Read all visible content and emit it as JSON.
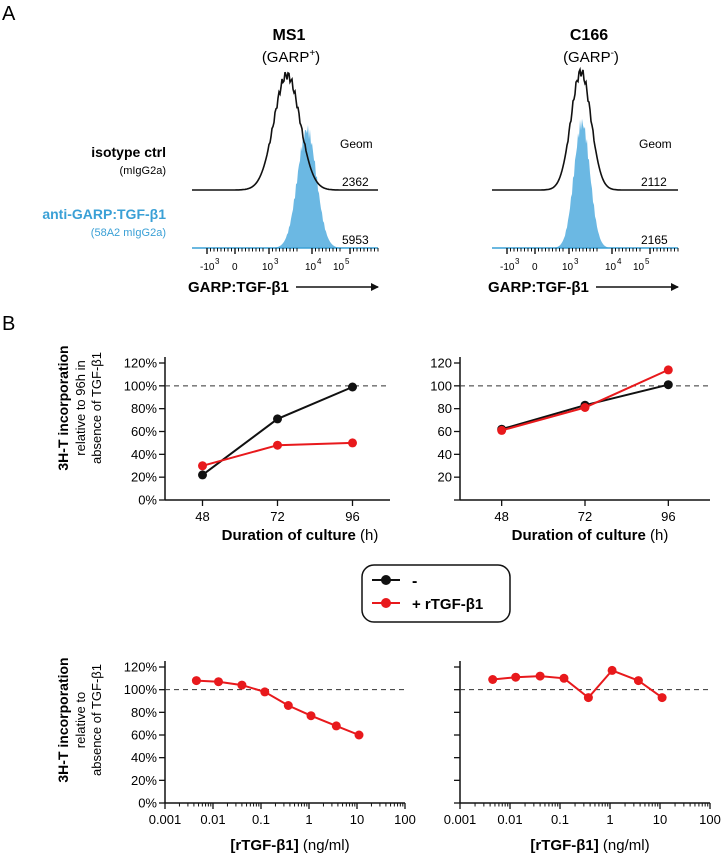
{
  "panel_labels": {
    "a": "A",
    "b": "B"
  },
  "colors": {
    "iso": "#111111",
    "anti": "#3aa0d6",
    "anti_fill": "#6bb8e3",
    "minus": "#111111",
    "plus": "#e8191c"
  },
  "flow": {
    "isotype_label": "isotype ctrl",
    "isotype_sub": "(mIgG2a)",
    "anti_label": "anti-GARP:TGF-β1",
    "anti_sub": "(58A2 mIgG2a)",
    "geom_label": "Geom",
    "axis_label": "GARP:TGF-β1",
    "tick_labels": [
      "-10",
      "3",
      "0",
      "10",
      "3",
      "10",
      "4",
      "10",
      "5"
    ],
    "panels": [
      {
        "title": "MS1",
        "subtitle_base": "(GARP",
        "subtitle_sup": "+",
        "subtitle_end": ")",
        "iso_geom": "2362",
        "anti_geom": "5953"
      },
      {
        "title": "C166",
        "subtitle_base": "(GARP",
        "subtitle_sup": "-",
        "subtitle_end": ")",
        "iso_geom": "2112",
        "anti_geom": "2165"
      }
    ]
  },
  "legend": {
    "minus": "-",
    "plus": "+ rTGF-β1"
  },
  "ylabels": {
    "top": {
      "main": "3H-T incorporation",
      "sub1": "relative to 96h in",
      "sub2": "absence of TGF-β1"
    },
    "bottom": {
      "main": "3H-T incorporation",
      "sub1": "relative to",
      "sub2": "absence of TGF-β1"
    }
  },
  "xlabels": {
    "top": {
      "bold": "Duration of culture",
      "normal": " (h)"
    },
    "bottom": {
      "bold": "[rTGF-β1]",
      "normal": " (ng/ml)"
    }
  },
  "chart_data": [
    {
      "type": "line",
      "id": "time-ms1",
      "x": [
        48,
        72,
        96
      ],
      "xlim": [
        36,
        108
      ],
      "xticks": [
        48,
        72,
        96
      ],
      "ylim": [
        0,
        120
      ],
      "yticks": [
        0,
        20,
        40,
        60,
        80,
        100,
        120
      ],
      "ytick_labels": [
        "0%",
        "20%",
        "40%",
        "60%",
        "80%",
        "100%",
        "120%"
      ],
      "reference_line": 100,
      "series": [
        {
          "name": "-",
          "values": [
            22,
            71,
            99
          ]
        },
        {
          "name": "+ rTGF-β1",
          "values": [
            30,
            48,
            50
          ]
        }
      ]
    },
    {
      "type": "line",
      "id": "time-c166",
      "x": [
        48,
        72,
        96
      ],
      "xlim": [
        36,
        108
      ],
      "xticks": [
        48,
        72,
        96
      ],
      "ylim": [
        0,
        120
      ],
      "yticks": [
        0,
        20,
        40,
        60,
        80,
        100,
        120
      ],
      "ytick_labels": [
        "",
        "20",
        "40",
        "60",
        "80",
        "100",
        "120"
      ],
      "reference_line": 100,
      "series": [
        {
          "name": "-",
          "values": [
            62,
            83,
            101
          ]
        },
        {
          "name": "+ rTGF-β1",
          "values": [
            61,
            81,
            114
          ]
        }
      ]
    },
    {
      "type": "line",
      "id": "dose-ms1",
      "xscale": "log",
      "x": [
        0.0045,
        0.013,
        0.04,
        0.12,
        0.37,
        1.1,
        3.7,
        11
      ],
      "xlim": [
        0.001,
        100
      ],
      "xticks": [
        0.001,
        0.01,
        0.1,
        1,
        10,
        100
      ],
      "xtick_labels": [
        "0.001",
        "0.01",
        "0.1",
        "1",
        "10",
        "100"
      ],
      "ylim": [
        0,
        120
      ],
      "yticks": [
        0,
        20,
        40,
        60,
        80,
        100,
        120
      ],
      "ytick_labels": [
        "0%",
        "20%",
        "40%",
        "60%",
        "80%",
        "100%",
        "120%"
      ],
      "reference_line": 100,
      "series": [
        {
          "name": "+ rTGF-β1",
          "values": [
            108,
            107,
            104,
            98,
            86,
            77,
            68,
            60
          ]
        }
      ]
    },
    {
      "type": "line",
      "id": "dose-c166",
      "xscale": "log",
      "x": [
        0.0045,
        0.013,
        0.04,
        0.12,
        0.37,
        1.1,
        3.7,
        11
      ],
      "xlim": [
        0.001,
        100
      ],
      "xticks": [
        0.001,
        0.01,
        0.1,
        1,
        10,
        100
      ],
      "xtick_labels": [
        "0.001",
        "0.01",
        "0.1",
        "1",
        "10",
        "100"
      ],
      "ylim": [
        0,
        120
      ],
      "yticks": [
        0,
        20,
        40,
        60,
        80,
        100,
        120
      ],
      "ytick_labels": [
        "",
        "",
        "",
        "",
        "",
        "",
        ""
      ],
      "reference_line": 100,
      "series": [
        {
          "name": "+ rTGF-β1",
          "values": [
            109,
            111,
            112,
            110,
            93,
            117,
            108,
            93
          ]
        }
      ]
    }
  ]
}
